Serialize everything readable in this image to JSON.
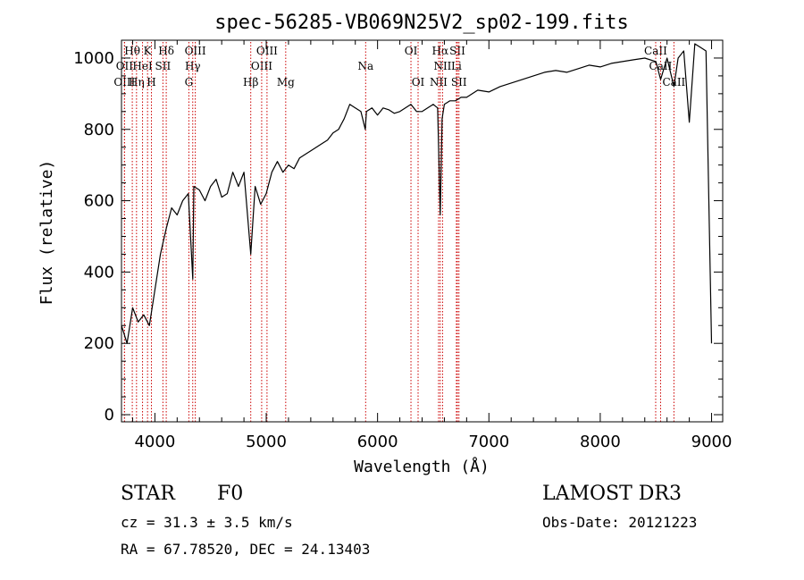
{
  "chart_data": {
    "type": "line",
    "title": "spec-56285-VB069N25V2_sp02-199.fits",
    "xlabel": "Wavelength (Å)",
    "ylabel": "Flux (relative)",
    "xlim": [
      3700,
      9100
    ],
    "ylim": [
      -20,
      1050
    ],
    "xticks": [
      4000,
      5000,
      6000,
      7000,
      8000,
      9000
    ],
    "yticks": [
      0,
      200,
      400,
      600,
      800,
      1000
    ],
    "series": [
      {
        "name": "flux",
        "x": [
          3700,
          3750,
          3800,
          3850,
          3900,
          3950,
          4000,
          4050,
          4100,
          4150,
          4200,
          4250,
          4300,
          4340,
          4350,
          4400,
          4450,
          4500,
          4550,
          4600,
          4650,
          4700,
          4750,
          4800,
          4861,
          4900,
          4950,
          5000,
          5050,
          5100,
          5150,
          5200,
          5250,
          5300,
          5350,
          5400,
          5450,
          5500,
          5550,
          5600,
          5650,
          5700,
          5750,
          5800,
          5850,
          5890,
          5900,
          5950,
          6000,
          6050,
          6100,
          6150,
          6200,
          6250,
          6300,
          6350,
          6400,
          6450,
          6500,
          6540,
          6563,
          6580,
          6600,
          6650,
          6700,
          6750,
          6800,
          6900,
          7000,
          7100,
          7200,
          7300,
          7400,
          7500,
          7600,
          7700,
          7800,
          7900,
          8000,
          8100,
          8200,
          8300,
          8400,
          8500,
          8542,
          8600,
          8662,
          8700,
          8750,
          8800,
          8850,
          8900,
          8950,
          9000
        ],
        "y": [
          250,
          200,
          300,
          260,
          280,
          250,
          350,
          450,
          520,
          580,
          560,
          600,
          620,
          380,
          640,
          630,
          600,
          640,
          660,
          610,
          620,
          680,
          640,
          680,
          450,
          640,
          590,
          620,
          680,
          710,
          680,
          700,
          690,
          720,
          730,
          740,
          750,
          760,
          770,
          790,
          800,
          830,
          870,
          860,
          850,
          800,
          850,
          860,
          840,
          860,
          855,
          845,
          850,
          860,
          870,
          850,
          850,
          860,
          870,
          860,
          560,
          830,
          870,
          880,
          880,
          890,
          890,
          910,
          905,
          920,
          930,
          940,
          950,
          960,
          965,
          960,
          970,
          980,
          975,
          985,
          990,
          995,
          1000,
          990,
          940,
          1000,
          920,
          1000,
          1020,
          820,
          1040,
          1030,
          1020,
          200
        ]
      }
    ],
    "spectral_lines": [
      {
        "label": "Hθ",
        "wavelength": 3797,
        "row": 1
      },
      {
        "label": "K",
        "wavelength": 3934,
        "row": 1
      },
      {
        "label": "Hδ",
        "wavelength": 4102,
        "row": 1
      },
      {
        "label": "OIII",
        "wavelength": 4363,
        "row": 1
      },
      {
        "label": "OIII",
        "wavelength": 5007,
        "row": 1
      },
      {
        "label": "OI",
        "wavelength": 6300,
        "row": 1
      },
      {
        "label": "Hα",
        "wavelength": 6563,
        "row": 1
      },
      {
        "label": "SII",
        "wavelength": 6717,
        "row": 1
      },
      {
        "label": "CaII",
        "wavelength": 8498,
        "row": 1
      },
      {
        "label": "OII",
        "wavelength": 3727,
        "row": 2
      },
      {
        "label": "HeI",
        "wavelength": 3889,
        "row": 2
      },
      {
        "label": "SII",
        "wavelength": 4072,
        "row": 2
      },
      {
        "label": "Hγ",
        "wavelength": 4340,
        "row": 2
      },
      {
        "label": "OIII",
        "wavelength": 4959,
        "row": 2
      },
      {
        "label": "Na",
        "wavelength": 5893,
        "row": 2
      },
      {
        "label": "NII",
        "wavelength": 6584,
        "row": 2
      },
      {
        "label": "Li",
        "wavelength": 6708,
        "row": 2
      },
      {
        "label": "CaII",
        "wavelength": 8542,
        "row": 2
      },
      {
        "label": "OIII",
        "wavelength": 3727,
        "row": 3
      },
      {
        "label": "Hη",
        "wavelength": 3835,
        "row": 3
      },
      {
        "label": "H",
        "wavelength": 3969,
        "row": 3
      },
      {
        "label": "G",
        "wavelength": 4305,
        "row": 3
      },
      {
        "label": "Hβ",
        "wavelength": 4861,
        "row": 3
      },
      {
        "label": "Mg",
        "wavelength": 5175,
        "row": 3
      },
      {
        "label": "OI",
        "wavelength": 6364,
        "row": 3
      },
      {
        "label": "NII",
        "wavelength": 6548,
        "row": 3
      },
      {
        "label": "SII",
        "wavelength": 6731,
        "row": 3
      },
      {
        "label": "CaII",
        "wavelength": 8662,
        "row": 3
      }
    ]
  },
  "info": {
    "object_class": "STAR",
    "subclass": "F0",
    "survey": "LAMOST DR3",
    "cz": "cz = 31.3 ± 3.5 km/s",
    "obs_date": "Obs-Date: 20121223",
    "coords": "RA =  67.78520, DEC =  24.13403"
  },
  "colors": {
    "line_marker": "#cc0000",
    "spectrum": "#000000"
  }
}
